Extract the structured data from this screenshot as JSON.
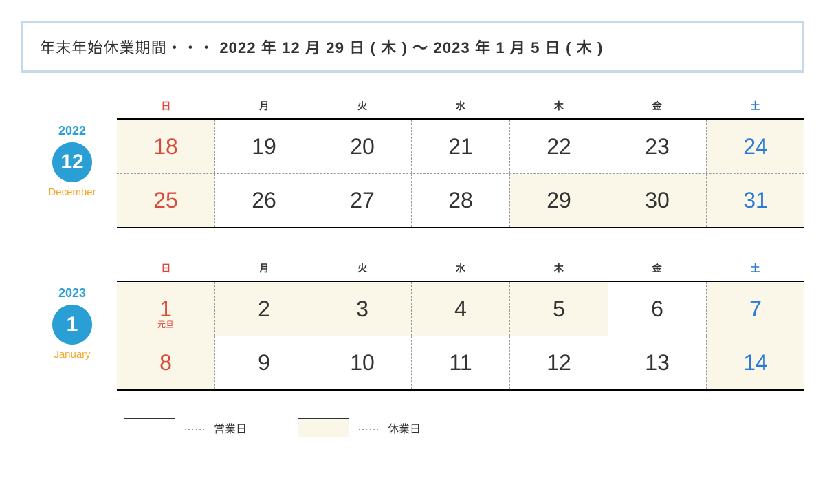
{
  "header": {
    "prefix": "年末年始休業期間・・・",
    "range": "2022 年 12 月 29 日 ( 木 ) 〜 2023 年 1 月 5 日 ( 木 )"
  },
  "colors": {
    "accent_blue": "#2a9fd6",
    "accent_orange": "#f5a623",
    "sunday_red": "#d84a3a",
    "saturday_blue": "#2a7ad6",
    "closed_bg": "#faf6e8",
    "open_bg": "#ffffff",
    "border_box": "#c5d9e8",
    "text": "#333333"
  },
  "day_of_week_labels": [
    "日",
    "月",
    "火",
    "水",
    "木",
    "金",
    "土"
  ],
  "months": [
    {
      "year": "2022",
      "month_num": "12",
      "month_en": "December",
      "weeks": [
        [
          {
            "d": "18",
            "closed": true,
            "type": "sun"
          },
          {
            "d": "19",
            "closed": false,
            "type": ""
          },
          {
            "d": "20",
            "closed": false,
            "type": ""
          },
          {
            "d": "21",
            "closed": false,
            "type": ""
          },
          {
            "d": "22",
            "closed": false,
            "type": ""
          },
          {
            "d": "23",
            "closed": false,
            "type": ""
          },
          {
            "d": "24",
            "closed": true,
            "type": "sat"
          }
        ],
        [
          {
            "d": "25",
            "closed": true,
            "type": "sun"
          },
          {
            "d": "26",
            "closed": false,
            "type": ""
          },
          {
            "d": "27",
            "closed": false,
            "type": ""
          },
          {
            "d": "28",
            "closed": false,
            "type": ""
          },
          {
            "d": "29",
            "closed": true,
            "type": ""
          },
          {
            "d": "30",
            "closed": true,
            "type": ""
          },
          {
            "d": "31",
            "closed": true,
            "type": "sat"
          }
        ]
      ]
    },
    {
      "year": "2023",
      "month_num": "1",
      "month_en": "January",
      "weeks": [
        [
          {
            "d": "1",
            "closed": true,
            "type": "sun",
            "sub": "元旦"
          },
          {
            "d": "2",
            "closed": true,
            "type": ""
          },
          {
            "d": "3",
            "closed": true,
            "type": ""
          },
          {
            "d": "4",
            "closed": true,
            "type": ""
          },
          {
            "d": "5",
            "closed": true,
            "type": ""
          },
          {
            "d": "6",
            "closed": false,
            "type": ""
          },
          {
            "d": "7",
            "closed": true,
            "type": "sat"
          }
        ],
        [
          {
            "d": "8",
            "closed": true,
            "type": "sun"
          },
          {
            "d": "9",
            "closed": false,
            "type": ""
          },
          {
            "d": "10",
            "closed": false,
            "type": ""
          },
          {
            "d": "11",
            "closed": false,
            "type": ""
          },
          {
            "d": "12",
            "closed": false,
            "type": ""
          },
          {
            "d": "13",
            "closed": false,
            "type": ""
          },
          {
            "d": "14",
            "closed": true,
            "type": "sat"
          }
        ]
      ]
    }
  ],
  "legend": {
    "open_label": "営業日",
    "closed_label": "休業日",
    "sep": "……"
  }
}
